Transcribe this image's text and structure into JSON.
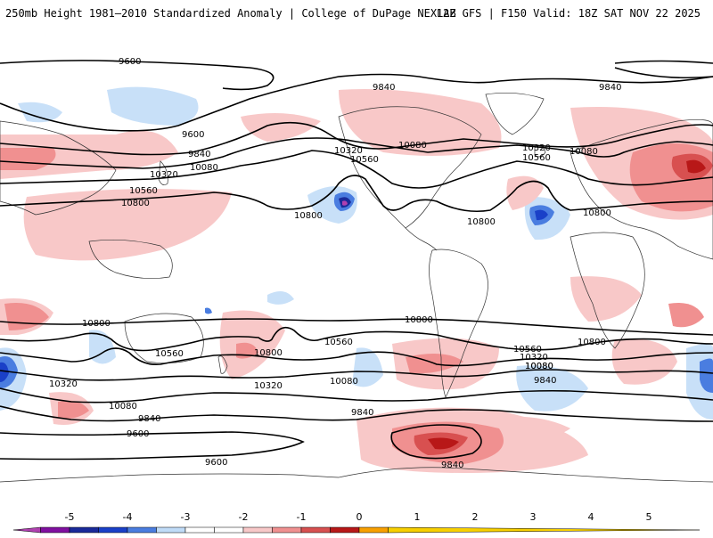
{
  "header": {
    "title_left": "250mb Height 1981–2010 Standardized Anomaly | College of DuPage NEXLAB",
    "title_right": "12Z GFS | F150 Valid: 18Z SAT NOV 22 2025"
  },
  "contour_labels": [
    "9600",
    "9840",
    "9840",
    "9600",
    "9840",
    "10080",
    "10320",
    "10560",
    "10800",
    "10800",
    "10320",
    "10560",
    "10080",
    "10320",
    "10560",
    "10080",
    "10800",
    "10800",
    "10800",
    "10560",
    "10800",
    "10800",
    "10560",
    "10800",
    "10320",
    "10080",
    "10080",
    "9840",
    "10320",
    "10080",
    "10560",
    "10320",
    "10080",
    "9840",
    "9840",
    "9600",
    "9600",
    "9840"
  ],
  "colorbar": {
    "tick_labels": [
      "-5",
      "-4",
      "-3",
      "-2",
      "-1",
      "0",
      "1",
      "2",
      "3",
      "4",
      "5"
    ],
    "colors": [
      "#b040b0",
      "#8010a0",
      "#1a2a9a",
      "#1a40c8",
      "#4a7de0",
      "#c0dcf8",
      "#ffffff",
      "#ffffff",
      "#f8c8c8",
      "#f09090",
      "#d85050",
      "#b81818",
      "#f8a000",
      "#f8d000"
    ]
  }
}
